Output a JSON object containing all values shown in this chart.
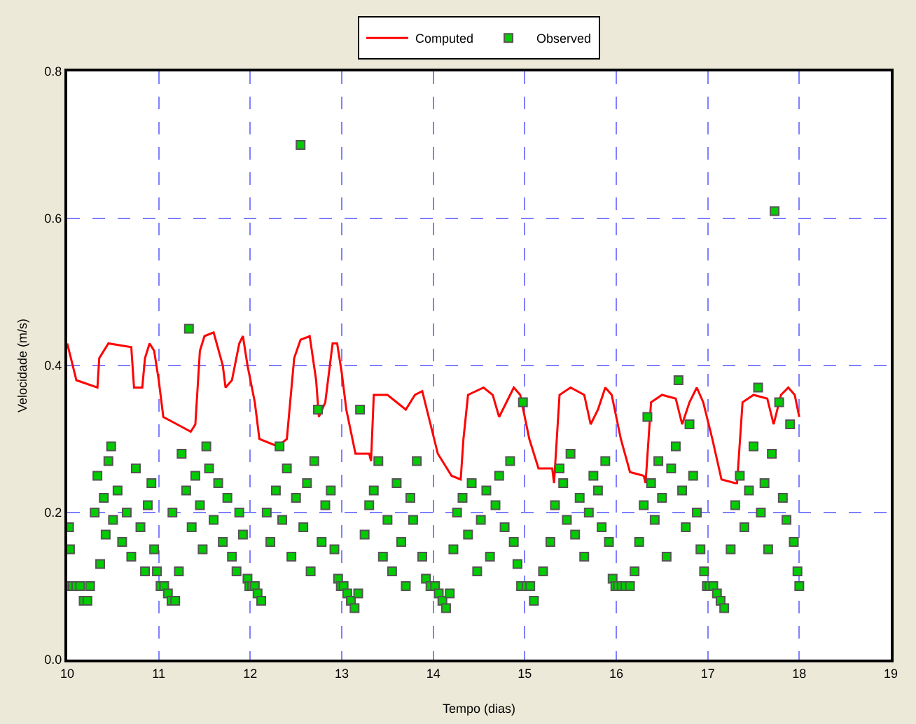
{
  "chart_data": {
    "type": "line",
    "xlabel": "Tempo (dias)",
    "ylabel": "Velocidade (m/s)",
    "xlim": [
      10,
      19
    ],
    "xticks": [
      10,
      11,
      12,
      13,
      14,
      15,
      16,
      17,
      18,
      19
    ],
    "ylim": [
      0,
      0.8
    ],
    "yticks": [
      {
        "value": 0,
        "label": "0.0"
      },
      {
        "value": 0.2,
        "label": "0.2"
      },
      {
        "value": 0.4,
        "label": "0.4"
      },
      {
        "value": 0.6,
        "label": "0.6"
      },
      {
        "value": 0.8,
        "label": "0.8"
      }
    ],
    "grid": true,
    "legend": "top",
    "series": [
      {
        "name": "Computed",
        "type": "line",
        "color": "#ff0000",
        "x": [
          10.0,
          10.1,
          10.33,
          10.35,
          10.45,
          10.7,
          10.73,
          10.82,
          10.85,
          10.9,
          10.95,
          11.0,
          11.05,
          11.2,
          11.35,
          11.4,
          11.45,
          11.5,
          11.6,
          11.7,
          11.73,
          11.8,
          11.88,
          11.92,
          11.97,
          12.05,
          12.1,
          12.3,
          12.4,
          12.48,
          12.55,
          12.65,
          12.72,
          12.75,
          12.82,
          12.9,
          12.95,
          13.0,
          13.05,
          13.15,
          13.3,
          13.32,
          13.35,
          13.5,
          13.6,
          13.7,
          13.8,
          13.88,
          13.95,
          14.05,
          14.2,
          14.3,
          14.33,
          14.38,
          14.55,
          14.65,
          14.72,
          14.8,
          14.88,
          14.95,
          15.05,
          15.15,
          15.3,
          15.32,
          15.38,
          15.5,
          15.65,
          15.72,
          15.8,
          15.88,
          15.95,
          16.05,
          16.15,
          16.3,
          16.32,
          16.38,
          16.5,
          16.65,
          16.72,
          16.8,
          16.88,
          16.95,
          17.05,
          17.15,
          17.3,
          17.32,
          17.38,
          17.5,
          17.65,
          17.72,
          17.8,
          17.88,
          17.95,
          18.0
        ],
        "values": [
          0.43,
          0.38,
          0.37,
          0.41,
          0.43,
          0.425,
          0.37,
          0.37,
          0.41,
          0.43,
          0.42,
          0.38,
          0.33,
          0.32,
          0.31,
          0.32,
          0.42,
          0.44,
          0.445,
          0.4,
          0.37,
          0.38,
          0.43,
          0.44,
          0.4,
          0.35,
          0.3,
          0.29,
          0.3,
          0.41,
          0.435,
          0.44,
          0.38,
          0.33,
          0.35,
          0.43,
          0.43,
          0.39,
          0.34,
          0.28,
          0.28,
          0.27,
          0.36,
          0.36,
          0.35,
          0.34,
          0.36,
          0.365,
          0.33,
          0.28,
          0.25,
          0.245,
          0.3,
          0.36,
          0.37,
          0.36,
          0.33,
          0.35,
          0.37,
          0.36,
          0.3,
          0.26,
          0.26,
          0.24,
          0.36,
          0.37,
          0.36,
          0.32,
          0.34,
          0.37,
          0.36,
          0.3,
          0.255,
          0.25,
          0.24,
          0.35,
          0.36,
          0.355,
          0.32,
          0.35,
          0.37,
          0.35,
          0.3,
          0.245,
          0.24,
          0.24,
          0.35,
          0.36,
          0.355,
          0.32,
          0.36,
          0.37,
          0.36,
          0.33
        ]
      },
      {
        "name": "Observed",
        "type": "scatter",
        "marker": "square",
        "color": "#00cc00",
        "x": [
          10.02,
          10.06,
          10.1,
          10.14,
          10.18,
          10.22,
          10.02,
          10.03,
          10.25,
          10.3,
          10.33,
          10.36,
          10.4,
          10.42,
          10.45,
          10.48,
          10.5,
          10.55,
          10.6,
          10.65,
          10.7,
          10.75,
          10.8,
          10.85,
          10.88,
          10.92,
          10.95,
          10.98,
          11.02,
          11.06,
          11.1,
          11.14,
          11.18,
          11.15,
          11.22,
          11.25,
          11.3,
          11.33,
          11.36,
          11.4,
          11.45,
          11.48,
          11.52,
          11.55,
          11.6,
          11.65,
          11.7,
          11.75,
          11.8,
          11.85,
          11.88,
          11.92,
          11.97,
          11.99,
          12.02,
          12.05,
          12.08,
          12.12,
          12.18,
          12.22,
          12.28,
          12.32,
          12.35,
          12.4,
          12.45,
          12.5,
          12.55,
          12.58,
          12.62,
          12.66,
          12.7,
          12.74,
          12.78,
          12.82,
          12.88,
          12.92,
          12.96,
          12.99,
          13.02,
          13.06,
          13.1,
          13.14,
          13.18,
          13.2,
          13.25,
          13.3,
          13.35,
          13.4,
          13.45,
          13.5,
          13.55,
          13.6,
          13.65,
          13.7,
          13.75,
          13.78,
          13.82,
          13.88,
          13.92,
          13.97,
          14.02,
          14.06,
          14.1,
          14.14,
          14.18,
          14.22,
          14.26,
          14.32,
          14.38,
          14.42,
          14.48,
          14.52,
          14.58,
          14.62,
          14.68,
          14.72,
          14.78,
          14.84,
          14.88,
          14.92,
          14.96,
          14.98,
          15.02,
          15.06,
          15.1,
          15.2,
          15.28,
          15.33,
          15.38,
          15.42,
          15.46,
          15.5,
          15.55,
          15.6,
          15.65,
          15.7,
          15.75,
          15.8,
          15.84,
          15.88,
          15.92,
          15.96,
          15.99,
          16.02,
          16.06,
          16.1,
          16.15,
          16.2,
          16.25,
          16.3,
          16.34,
          16.38,
          16.42,
          16.46,
          16.5,
          16.55,
          16.6,
          16.65,
          16.68,
          16.72,
          16.76,
          16.8,
          16.84,
          16.88,
          16.92,
          16.96,
          16.99,
          17.02,
          17.06,
          17.1,
          17.14,
          17.18,
          17.25,
          17.3,
          17.35,
          17.4,
          17.45,
          17.5,
          17.55,
          17.58,
          17.62,
          17.66,
          17.7,
          17.73,
          17.78,
          17.82,
          17.86,
          17.9,
          17.94,
          17.98,
          18.0
        ],
        "values": [
          0.1,
          0.1,
          0.1,
          0.1,
          0.08,
          0.08,
          0.18,
          0.15,
          0.1,
          0.2,
          0.25,
          0.13,
          0.22,
          0.17,
          0.27,
          0.29,
          0.19,
          0.23,
          0.16,
          0.2,
          0.14,
          0.26,
          0.18,
          0.12,
          0.21,
          0.24,
          0.15,
          0.12,
          0.1,
          0.1,
          0.09,
          0.08,
          0.08,
          0.2,
          0.12,
          0.28,
          0.23,
          0.45,
          0.18,
          0.25,
          0.21,
          0.15,
          0.29,
          0.26,
          0.19,
          0.24,
          0.16,
          0.22,
          0.14,
          0.12,
          0.2,
          0.17,
          0.11,
          0.1,
          0.1,
          0.1,
          0.09,
          0.08,
          0.2,
          0.16,
          0.23,
          0.29,
          0.19,
          0.26,
          0.14,
          0.22,
          0.7,
          0.18,
          0.24,
          0.12,
          0.27,
          0.34,
          0.16,
          0.21,
          0.23,
          0.15,
          0.11,
          0.1,
          0.1,
          0.09,
          0.08,
          0.07,
          0.09,
          0.34,
          0.17,
          0.21,
          0.23,
          0.27,
          0.14,
          0.19,
          0.12,
          0.24,
          0.16,
          0.1,
          0.22,
          0.19,
          0.27,
          0.14,
          0.11,
          0.1,
          0.1,
          0.09,
          0.08,
          0.07,
          0.09,
          0.15,
          0.2,
          0.22,
          0.17,
          0.24,
          0.12,
          0.19,
          0.23,
          0.14,
          0.21,
          0.25,
          0.18,
          0.27,
          0.16,
          0.13,
          0.1,
          0.35,
          0.1,
          0.1,
          0.08,
          0.12,
          0.16,
          0.21,
          0.26,
          0.24,
          0.19,
          0.28,
          0.17,
          0.22,
          0.14,
          0.2,
          0.25,
          0.23,
          0.18,
          0.27,
          0.16,
          0.11,
          0.1,
          0.1,
          0.1,
          0.1,
          0.1,
          0.12,
          0.16,
          0.21,
          0.33,
          0.24,
          0.19,
          0.27,
          0.22,
          0.14,
          0.26,
          0.29,
          0.38,
          0.23,
          0.18,
          0.32,
          0.25,
          0.2,
          0.15,
          0.12,
          0.1,
          0.1,
          0.1,
          0.09,
          0.08,
          0.07,
          0.15,
          0.21,
          0.25,
          0.18,
          0.23,
          0.29,
          0.37,
          0.2,
          0.24,
          0.15,
          0.28,
          0.61,
          0.35,
          0.22,
          0.19,
          0.32,
          0.16,
          0.12,
          0.1
        ]
      }
    ]
  }
}
